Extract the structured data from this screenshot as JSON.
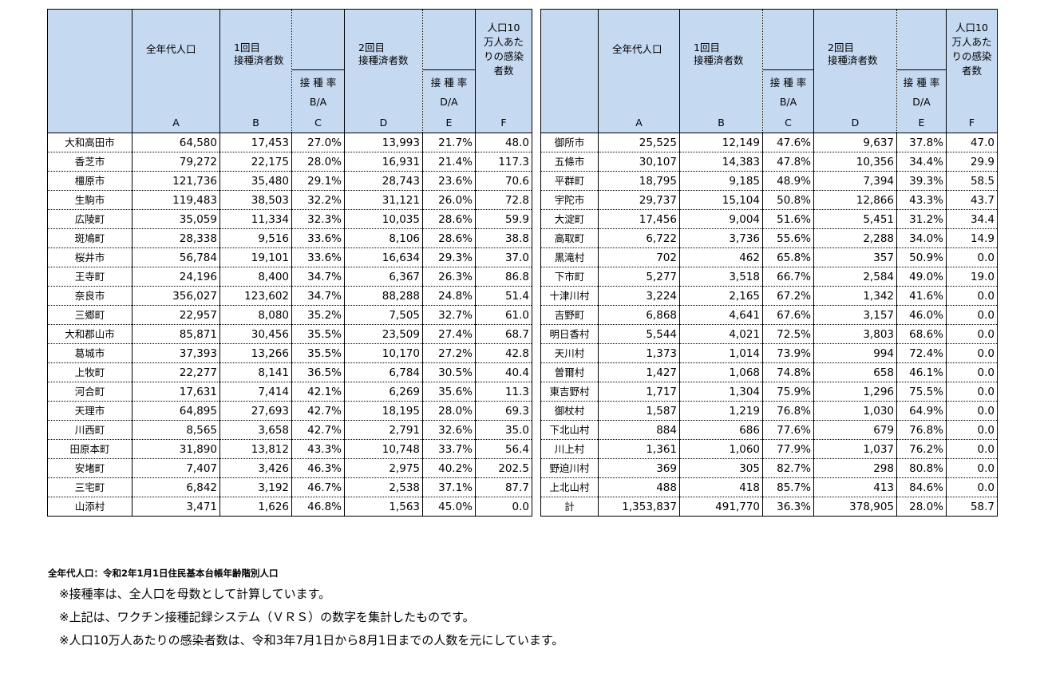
{
  "headers": {
    "pop": "全年代人口",
    "first_line1": "1回目",
    "first_line2": "接種済者数",
    "second_line1": "2回目",
    "second_line2": "接種済者数",
    "rate_line1": "接 種 率",
    "rate_ba": "B/A",
    "rate_da": "D/A",
    "inf_left_1": "人口10",
    "inf_left_2": "万人あた",
    "inf_left_3": "りの感染",
    "inf_left_4": "者数",
    "letters": [
      "A",
      "B",
      "C",
      "D",
      "E",
      "F"
    ]
  },
  "left_rows": [
    [
      "大和高田市",
      "64,580",
      "17,453",
      "27.0%",
      "13,993",
      "21.7%",
      "48.0"
    ],
    [
      "香芝市",
      "79,272",
      "22,175",
      "28.0%",
      "16,931",
      "21.4%",
      "117.3"
    ],
    [
      "橿原市",
      "121,736",
      "35,480",
      "29.1%",
      "28,743",
      "23.6%",
      "70.6"
    ],
    [
      "生駒市",
      "119,483",
      "38,503",
      "32.2%",
      "31,121",
      "26.0%",
      "72.8"
    ],
    [
      "広陵町",
      "35,059",
      "11,334",
      "32.3%",
      "10,035",
      "28.6%",
      "59.9"
    ],
    [
      "斑鳩町",
      "28,338",
      "9,516",
      "33.6%",
      "8,106",
      "28.6%",
      "38.8"
    ],
    [
      "桜井市",
      "56,784",
      "19,101",
      "33.6%",
      "16,634",
      "29.3%",
      "37.0"
    ],
    [
      "王寺町",
      "24,196",
      "8,400",
      "34.7%",
      "6,367",
      "26.3%",
      "86.8"
    ],
    [
      "奈良市",
      "356,027",
      "123,602",
      "34.7%",
      "88,288",
      "24.8%",
      "51.4"
    ],
    [
      "三郷町",
      "22,957",
      "8,080",
      "35.2%",
      "7,505",
      "32.7%",
      "61.0"
    ],
    [
      "大和郡山市",
      "85,871",
      "30,456",
      "35.5%",
      "23,509",
      "27.4%",
      "68.7"
    ],
    [
      "葛城市",
      "37,393",
      "13,266",
      "35.5%",
      "10,170",
      "27.2%",
      "42.8"
    ],
    [
      "上牧町",
      "22,277",
      "8,141",
      "36.5%",
      "6,784",
      "30.5%",
      "40.4"
    ],
    [
      "河合町",
      "17,631",
      "7,414",
      "42.1%",
      "6,269",
      "35.6%",
      "11.3"
    ],
    [
      "天理市",
      "64,895",
      "27,693",
      "42.7%",
      "18,195",
      "28.0%",
      "69.3"
    ],
    [
      "川西町",
      "8,565",
      "3,658",
      "42.7%",
      "2,791",
      "32.6%",
      "35.0"
    ],
    [
      "田原本町",
      "31,890",
      "13,812",
      "43.3%",
      "10,748",
      "33.7%",
      "56.4"
    ],
    [
      "安堵町",
      "7,407",
      "3,426",
      "46.3%",
      "2,975",
      "40.2%",
      "202.5"
    ],
    [
      "三宅町",
      "6,842",
      "3,192",
      "46.7%",
      "2,538",
      "37.1%",
      "87.7"
    ],
    [
      "山添村",
      "3,471",
      "1,626",
      "46.8%",
      "1,563",
      "45.0%",
      "0.0"
    ]
  ],
  "right_rows": [
    [
      "御所市",
      "25,525",
      "12,149",
      "47.6%",
      "9,637",
      "37.8%",
      "47.0"
    ],
    [
      "五條市",
      "30,107",
      "14,383",
      "47.8%",
      "10,356",
      "34.4%",
      "29.9"
    ],
    [
      "平群町",
      "18,795",
      "9,185",
      "48.9%",
      "7,394",
      "39.3%",
      "58.5"
    ],
    [
      "宇陀市",
      "29,737",
      "15,104",
      "50.8%",
      "12,866",
      "43.3%",
      "43.7"
    ],
    [
      "大淀町",
      "17,456",
      "9,004",
      "51.6%",
      "5,451",
      "31.2%",
      "34.4"
    ],
    [
      "高取町",
      "6,722",
      "3,736",
      "55.6%",
      "2,288",
      "34.0%",
      "14.9"
    ],
    [
      "黒滝村",
      "702",
      "462",
      "65.8%",
      "357",
      "50.9%",
      "0.0"
    ],
    [
      "下市町",
      "5,277",
      "3,518",
      "66.7%",
      "2,584",
      "49.0%",
      "19.0"
    ],
    [
      "十津川村",
      "3,224",
      "2,165",
      "67.2%",
      "1,342",
      "41.6%",
      "0.0"
    ],
    [
      "吉野町",
      "6,868",
      "4,641",
      "67.6%",
      "3,157",
      "46.0%",
      "0.0"
    ],
    [
      "明日香村",
      "5,544",
      "4,021",
      "72.5%",
      "3,803",
      "68.6%",
      "0.0"
    ],
    [
      "天川村",
      "1,373",
      "1,014",
      "73.9%",
      "994",
      "72.4%",
      "0.0"
    ],
    [
      "曽爾村",
      "1,427",
      "1,068",
      "74.8%",
      "658",
      "46.1%",
      "0.0"
    ],
    [
      "東吉野村",
      "1,717",
      "1,304",
      "75.9%",
      "1,296",
      "75.5%",
      "0.0"
    ],
    [
      "御杖村",
      "1,587",
      "1,219",
      "76.8%",
      "1,030",
      "64.9%",
      "0.0"
    ],
    [
      "下北山村",
      "884",
      "686",
      "77.6%",
      "679",
      "76.8%",
      "0.0"
    ],
    [
      "川上村",
      "1,361",
      "1,060",
      "77.9%",
      "1,037",
      "76.2%",
      "0.0"
    ],
    [
      "野迫川村",
      "369",
      "305",
      "82.7%",
      "298",
      "80.8%",
      "0.0"
    ],
    [
      "上北山村",
      "488",
      "418",
      "85.7%",
      "413",
      "84.6%",
      "0.0"
    ],
    [
      "計",
      "1,353,837",
      "491,770",
      "36.3%",
      "378,905",
      "28.0%",
      "58.7"
    ]
  ],
  "notes": {
    "source": "全年代人口：令和2年1月1日住民基本台帳年齢階別人口",
    "note1": "※接種率は、全人口を母数として計算しています。",
    "note2": "※上記は、ワクチン接種記録システム（ＶＲＳ）の数字を集計したものです。",
    "note3": "※人口10万人あたりの感染者数は、令和3年7月1日から8月1日までの人数を元にしています。"
  },
  "colors": {
    "header_bg": "#c5d9f1"
  }
}
